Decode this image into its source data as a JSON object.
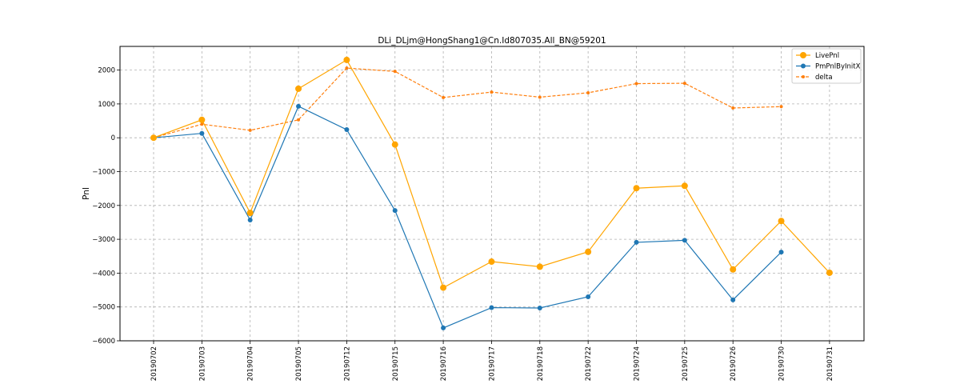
{
  "chart_data": {
    "type": "line",
    "title": "DLi_DLjm@HongShang1@Cn.Id807035.All_BN@59201",
    "xlabel": "",
    "ylabel": "Pnl",
    "categories": [
      "20190702",
      "20190703",
      "20190704",
      "20190705",
      "20190712",
      "20190715",
      "20190716",
      "20190717",
      "20190718",
      "20190722",
      "20190724",
      "20190725",
      "20190726",
      "20190730",
      "20190731"
    ],
    "ylim": [
      -6000,
      2700
    ],
    "yticks": [
      -6000,
      -5000,
      -4000,
      -3000,
      -2000,
      -1000,
      0,
      1000,
      2000
    ],
    "grid": true,
    "legend_position": "top-right",
    "series": [
      {
        "name": "LivePnl",
        "color": "#ffa500",
        "style": "solid",
        "marker_size": "large",
        "values": [
          0,
          530,
          -2220,
          1450,
          2300,
          -200,
          -4430,
          -3660,
          -3810,
          -3370,
          -1490,
          -1420,
          -3890,
          -2460,
          -3990
        ]
      },
      {
        "name": "PmPnlByInitX",
        "color": "#1f77b4",
        "style": "solid",
        "marker_size": "medium",
        "values": [
          0,
          130,
          -2430,
          930,
          240,
          -2150,
          -5620,
          -5020,
          -5030,
          -4700,
          -3090,
          -3030,
          -4790,
          -3380,
          null
        ]
      },
      {
        "name": "delta",
        "color": "#ff7f0e",
        "style": "dashed",
        "marker_size": "small",
        "values": [
          0,
          400,
          220,
          530,
          2060,
          1960,
          1190,
          1350,
          1200,
          1330,
          1600,
          1610,
          880,
          920,
          null
        ]
      }
    ]
  }
}
